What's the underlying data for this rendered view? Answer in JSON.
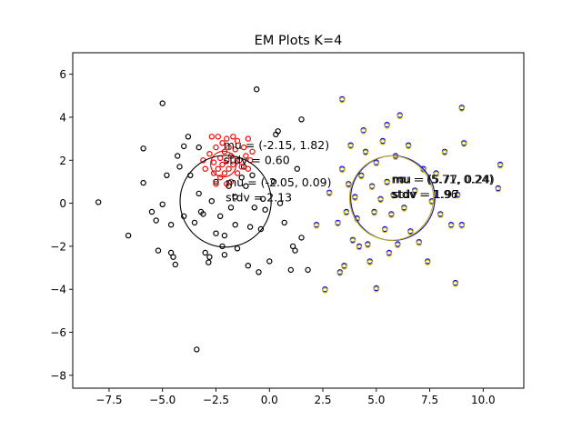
{
  "chart_data": {
    "type": "scatter",
    "title": "EM Plots K=4",
    "xlabel": "",
    "ylabel": "",
    "xlim": [
      -9.2,
      11.9
    ],
    "ylim": [
      -8.6,
      7.0
    ],
    "xticks": [
      -7.5,
      -5.0,
      -2.5,
      0.0,
      2.5,
      5.0,
      7.5,
      10.0
    ],
    "xtick_labels": [
      "−7.5",
      "−5.0",
      "−2.5",
      "0.0",
      "2.5",
      "5.0",
      "7.5",
      "10.0"
    ],
    "yticks": [
      -8,
      -6,
      -4,
      -2,
      0,
      2,
      4,
      6
    ],
    "ytick_labels": [
      "−8",
      "−6",
      "−4",
      "−2",
      "0",
      "2",
      "4",
      "6"
    ],
    "grid": false,
    "series": [
      {
        "color": "#000000",
        "points": [
          [
            -8.0,
            0.05
          ],
          [
            -6.6,
            -1.5
          ],
          [
            -5.9,
            2.55
          ],
          [
            -5.9,
            0.95
          ],
          [
            -5.5,
            -0.4
          ],
          [
            -5.3,
            -0.8
          ],
          [
            -5.2,
            -2.2
          ],
          [
            -5.0,
            4.65
          ],
          [
            -5.0,
            -0.05
          ],
          [
            -4.8,
            1.3
          ],
          [
            -4.6,
            -1.0
          ],
          [
            -4.6,
            -2.3
          ],
          [
            -4.5,
            -2.5
          ],
          [
            -4.4,
            -2.85
          ],
          [
            -4.3,
            2.2
          ],
          [
            -4.2,
            1.7
          ],
          [
            -4.0,
            -0.6
          ],
          [
            -4.0,
            2.65
          ],
          [
            -3.8,
            3.1
          ],
          [
            -3.7,
            1.3
          ],
          [
            -3.5,
            -0.9
          ],
          [
            -3.4,
            -6.8
          ],
          [
            -3.3,
            2.6
          ],
          [
            -3.3,
            0.45
          ],
          [
            -3.2,
            -0.4
          ],
          [
            -3.1,
            -0.5
          ],
          [
            -3.0,
            -2.3
          ],
          [
            -2.85,
            -2.75
          ],
          [
            -2.8,
            -2.5
          ],
          [
            -2.7,
            0.1
          ],
          [
            -2.5,
            1.0
          ],
          [
            -2.5,
            -1.4
          ],
          [
            -2.3,
            -0.6
          ],
          [
            -2.2,
            -2.0
          ],
          [
            -2.1,
            -1.5
          ],
          [
            -2.1,
            -2.4
          ],
          [
            -1.9,
            0.8
          ],
          [
            -1.8,
            -0.2
          ],
          [
            -1.6,
            0.3
          ],
          [
            -1.6,
            -1.0
          ],
          [
            -1.5,
            -2.1
          ],
          [
            -1.3,
            1.2
          ],
          [
            -1.2,
            1.7
          ],
          [
            -1.1,
            0.8
          ],
          [
            -1.0,
            -2.9
          ],
          [
            -0.9,
            -1.1
          ],
          [
            -0.8,
            1.3
          ],
          [
            -0.7,
            -0.2
          ],
          [
            -0.6,
            5.3
          ],
          [
            -0.5,
            -3.2
          ],
          [
            -0.4,
            -1.2
          ],
          [
            -0.3,
            0.2
          ],
          [
            -0.2,
            -0.3
          ],
          [
            0.0,
            -2.7
          ],
          [
            0.2,
            1.0
          ],
          [
            0.3,
            3.2
          ],
          [
            0.4,
            3.35
          ],
          [
            0.5,
            0.0
          ],
          [
            0.7,
            -0.9
          ],
          [
            1.0,
            -3.1
          ],
          [
            1.1,
            -2.0
          ],
          [
            1.2,
            -2.2
          ],
          [
            1.3,
            1.6
          ],
          [
            1.5,
            3.9
          ],
          [
            1.5,
            -1.6
          ],
          [
            1.8,
            -3.1
          ]
        ]
      },
      {
        "color": "#ff0000",
        "points": [
          [
            -3.1,
            2.0
          ],
          [
            -3.0,
            1.6
          ],
          [
            -2.8,
            2.3
          ],
          [
            -2.7,
            3.1
          ],
          [
            -2.6,
            1.4
          ],
          [
            -2.6,
            1.9
          ],
          [
            -2.5,
            2.6
          ],
          [
            -2.5,
            0.9
          ],
          [
            -2.4,
            3.1
          ],
          [
            -2.4,
            1.6
          ],
          [
            -2.3,
            2.1
          ],
          [
            -2.3,
            1.2
          ],
          [
            -2.2,
            2.8
          ],
          [
            -2.2,
            1.8
          ],
          [
            -2.1,
            2.4
          ],
          [
            -2.1,
            1.4
          ],
          [
            -2.0,
            3.0
          ],
          [
            -2.0,
            2.0
          ],
          [
            -2.0,
            0.9
          ],
          [
            -1.9,
            2.6
          ],
          [
            -1.9,
            1.6
          ],
          [
            -1.8,
            2.2
          ],
          [
            -1.8,
            1.0
          ],
          [
            -1.7,
            3.1
          ],
          [
            -1.7,
            1.8
          ],
          [
            -1.6,
            2.5
          ],
          [
            -1.5,
            1.4
          ],
          [
            -1.5,
            2.9
          ],
          [
            -1.4,
            2.0
          ],
          [
            -1.3,
            1.7
          ],
          [
            -1.2,
            2.6
          ],
          [
            -1.1,
            2.2
          ],
          [
            -1.0,
            1.6
          ],
          [
            -1.0,
            3.0
          ],
          [
            -0.9,
            2.0
          ],
          [
            -0.8,
            2.4
          ]
        ]
      },
      {
        "color": "#0000ff",
        "points": [
          [
            2.2,
            -1.0
          ],
          [
            2.6,
            -4.0
          ],
          [
            2.8,
            0.5
          ],
          [
            3.2,
            -0.9
          ],
          [
            3.3,
            -3.2
          ],
          [
            3.4,
            1.6
          ],
          [
            3.4,
            4.85
          ],
          [
            3.5,
            -2.9
          ],
          [
            3.6,
            -0.4
          ],
          [
            3.7,
            0.9
          ],
          [
            3.8,
            2.7
          ],
          [
            3.9,
            -1.7
          ],
          [
            4.0,
            0.3
          ],
          [
            4.1,
            -0.7
          ],
          [
            4.2,
            -2.0
          ],
          [
            4.3,
            1.3
          ],
          [
            4.4,
            3.4
          ],
          [
            4.5,
            2.4
          ],
          [
            4.6,
            -1.9
          ],
          [
            4.7,
            -2.7
          ],
          [
            4.8,
            0.8
          ],
          [
            4.9,
            -0.4
          ],
          [
            5.0,
            1.9
          ],
          [
            5.0,
            -3.95
          ],
          [
            5.2,
            0.2
          ],
          [
            5.3,
            2.9
          ],
          [
            5.4,
            -1.2
          ],
          [
            5.5,
            3.65
          ],
          [
            5.5,
            1.0
          ],
          [
            5.6,
            -2.3
          ],
          [
            5.7,
            -0.5
          ],
          [
            5.8,
            0.4
          ],
          [
            5.9,
            2.2
          ],
          [
            6.0,
            -1.9
          ],
          [
            6.1,
            4.1
          ],
          [
            6.2,
            1.1
          ],
          [
            6.3,
            -0.2
          ],
          [
            6.5,
            2.7
          ],
          [
            6.6,
            -1.3
          ],
          [
            6.8,
            0.6
          ],
          [
            7.0,
            -1.8
          ],
          [
            7.2,
            1.6
          ],
          [
            7.4,
            -2.7
          ],
          [
            7.6,
            0.1
          ],
          [
            7.8,
            1.4
          ],
          [
            8.0,
            -0.5
          ],
          [
            8.2,
            2.4
          ],
          [
            8.5,
            -1.0
          ],
          [
            8.7,
            -3.7
          ],
          [
            8.8,
            0.4
          ],
          [
            9.0,
            4.45
          ],
          [
            9.1,
            2.8
          ],
          [
            9.0,
            -1.0
          ],
          [
            10.8,
            1.8
          ],
          [
            10.7,
            0.7
          ]
        ]
      },
      {
        "color": "#c8b400",
        "points": [
          [
            2.2,
            -1.05
          ],
          [
            2.6,
            -4.05
          ],
          [
            2.8,
            0.45
          ],
          [
            3.2,
            -0.95
          ],
          [
            3.3,
            -3.25
          ],
          [
            3.4,
            1.55
          ],
          [
            3.4,
            4.8
          ],
          [
            3.5,
            -2.95
          ],
          [
            3.6,
            -0.45
          ],
          [
            3.7,
            0.85
          ],
          [
            3.8,
            2.65
          ],
          [
            3.9,
            -1.75
          ],
          [
            4.0,
            0.25
          ],
          [
            4.1,
            -0.75
          ],
          [
            4.2,
            -2.05
          ],
          [
            4.3,
            1.25
          ],
          [
            4.4,
            3.35
          ],
          [
            4.5,
            2.35
          ],
          [
            4.6,
            -1.95
          ],
          [
            4.7,
            -2.75
          ],
          [
            4.8,
            0.75
          ],
          [
            4.9,
            -0.45
          ],
          [
            5.0,
            1.85
          ],
          [
            5.0,
            -4.0
          ],
          [
            5.2,
            0.15
          ],
          [
            5.3,
            2.85
          ],
          [
            5.4,
            -1.25
          ],
          [
            5.5,
            3.6
          ],
          [
            5.5,
            0.95
          ],
          [
            5.6,
            -2.35
          ],
          [
            5.7,
            -0.55
          ],
          [
            5.8,
            0.35
          ],
          [
            5.9,
            2.15
          ],
          [
            6.0,
            -1.95
          ],
          [
            6.1,
            4.05
          ],
          [
            6.2,
            1.05
          ],
          [
            6.3,
            -0.25
          ],
          [
            6.5,
            2.65
          ],
          [
            6.6,
            -1.35
          ],
          [
            6.8,
            0.55
          ],
          [
            7.0,
            -1.85
          ],
          [
            7.2,
            1.55
          ],
          [
            7.4,
            -2.75
          ],
          [
            7.6,
            0.05
          ],
          [
            7.8,
            1.35
          ],
          [
            8.0,
            -0.55
          ],
          [
            8.2,
            2.35
          ],
          [
            8.5,
            -1.05
          ],
          [
            8.7,
            -3.75
          ],
          [
            8.8,
            0.35
          ],
          [
            9.0,
            4.4
          ],
          [
            9.1,
            2.75
          ],
          [
            9.0,
            -1.05
          ],
          [
            10.8,
            1.75
          ],
          [
            10.7,
            0.65
          ]
        ]
      }
    ],
    "circles": [
      {
        "cx": -2.15,
        "cy": 1.82,
        "r": 0.6,
        "color": "#ff0000"
      },
      {
        "cx": -2.05,
        "cy": 0.09,
        "r": 2.13,
        "color": "#000000"
      },
      {
        "cx": 5.77,
        "cy": 0.24,
        "r": 1.97,
        "color": "#0000ff"
      },
      {
        "cx": 5.71,
        "cy": 0.24,
        "r": 1.96,
        "color": "#c8b400"
      }
    ],
    "annotations": [
      {
        "x": -2.15,
        "y": 2.52,
        "text": "mu = (-2.15, 1.82)"
      },
      {
        "x": -2.15,
        "y": 1.82,
        "text": "stdv = 0.60"
      },
      {
        "x": -2.05,
        "y": 0.79,
        "text": "mu = (-2.05, 0.09)"
      },
      {
        "x": -2.05,
        "y": 0.09,
        "text": "stdv = 2.13"
      },
      {
        "x": 5.77,
        "y": 0.94,
        "text": "mu = (5.77, 0.24)"
      },
      {
        "x": 5.77,
        "y": 0.24,
        "text": "stdv = 1.97"
      },
      {
        "x": 5.71,
        "y": 0.94,
        "text": "mu = (5.71, 0.24)"
      },
      {
        "x": 5.71,
        "y": 0.24,
        "text": "stdv = 1.96"
      }
    ]
  }
}
